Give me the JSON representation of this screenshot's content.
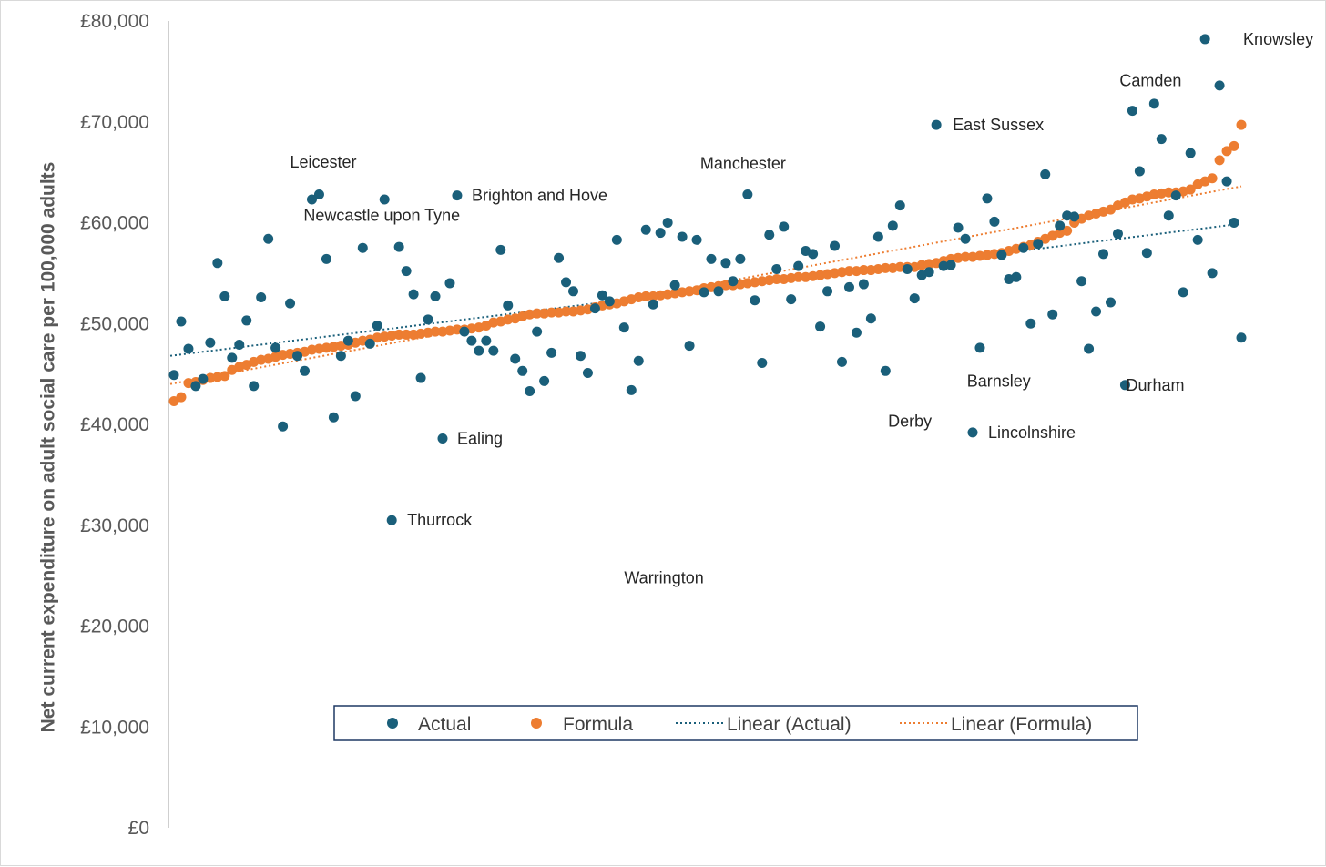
{
  "chart_data": {
    "type": "scatter",
    "ylabel": "Net current expenditure on adult social care per 100,000 adults",
    "xlabel": "",
    "ylim": [
      0,
      80000
    ],
    "y_ticks": [
      "£0",
      "£10,000",
      "£20,000",
      "£30,000",
      "£40,000",
      "£50,000",
      "£60,000",
      "£70,000",
      "£80,000"
    ],
    "legend_position": "bottom-center",
    "colors": {
      "actual": "#1a5f7a",
      "formula": "#ed7d31",
      "axis": "#bfbfbf",
      "legend_border": "#1f3864"
    },
    "legend": {
      "actual": "Actual",
      "formula": "Formula",
      "linear_actual": "Linear (Actual)",
      "linear_formula": "Linear (Formula)"
    },
    "trendlines": {
      "actual": {
        "start": 46800,
        "end": 59900
      },
      "formula": {
        "start": 44000,
        "end": 63600
      }
    },
    "annotations": [
      {
        "label": "Knowsley",
        "x": 145,
        "y": 78200
      },
      {
        "label": "Camden",
        "x": 132,
        "y": 71100
      },
      {
        "label": "East Sussex",
        "x": 105,
        "y": 69700
      },
      {
        "label": "Leicester",
        "x": 20,
        "y": 62300
      },
      {
        "label": "Manchester",
        "x": 79,
        "y": 62800
      },
      {
        "label": "Brighton and Hove",
        "x": 39,
        "y": 62700
      },
      {
        "label": "Newcastle upon Tyne",
        "x": 21,
        "y": 62800
      },
      {
        "label": "Barnsley",
        "x": 121,
        "y": 44300
      },
      {
        "label": "Durham",
        "x": 129,
        "y": 43900
      },
      {
        "label": "Derby",
        "x": 107,
        "y": 40300
      },
      {
        "label": "Lincolnshire",
        "x": 110,
        "y": 39200
      },
      {
        "label": "Ealing",
        "x": 37,
        "y": 38600
      },
      {
        "label": "Thurrock",
        "x": 30,
        "y": 30500
      },
      {
        "label": "Warrington",
        "x": 60,
        "y": 24800
      }
    ],
    "series": [
      {
        "name": "Actual",
        "x": [
          0,
          1,
          2,
          3,
          4,
          5,
          6,
          7,
          8,
          9,
          10,
          11,
          12,
          13,
          14,
          15,
          16,
          17,
          18,
          19,
          20,
          21,
          22,
          23,
          24,
          25,
          26,
          27,
          28,
          29,
          30,
          31,
          32,
          33,
          34,
          35,
          36,
          37,
          38,
          39,
          40,
          41,
          42,
          43,
          44,
          45,
          46,
          47,
          48,
          49,
          50,
          51,
          52,
          53,
          54,
          55,
          56,
          57,
          58,
          59,
          60,
          61,
          62,
          63,
          64,
          65,
          66,
          67,
          68,
          69,
          70,
          71,
          72,
          73,
          74,
          75,
          76,
          77,
          78,
          79,
          80,
          81,
          82,
          83,
          84,
          85,
          86,
          87,
          88,
          89,
          90,
          91,
          92,
          93,
          94,
          95,
          96,
          97,
          98,
          99,
          100,
          101,
          102,
          103,
          104,
          105,
          106,
          107,
          108,
          109,
          110,
          111,
          112,
          113,
          114,
          115,
          116,
          117,
          118,
          119,
          120,
          121,
          122,
          123,
          124,
          125,
          126,
          127,
          128,
          129,
          130,
          131,
          132,
          133,
          134,
          135,
          136,
          137,
          138,
          139,
          140,
          141,
          142,
          143,
          144,
          145,
          146,
          147
        ],
        "values": [
          44900,
          50200,
          47500,
          43800,
          44500,
          48100,
          56000,
          52700,
          46600,
          47900,
          50300,
          43800,
          52600,
          58400,
          47600,
          39800,
          52000,
          46800,
          45300,
          62300,
          62800,
          56400,
          40700,
          46800,
          48300,
          42800,
          57500,
          48000,
          49800,
          62300,
          30500,
          57600,
          55200,
          52900,
          44600,
          50400,
          52700,
          38600,
          54000,
          62700,
          49200,
          48300,
          47300,
          48300,
          47300,
          57300,
          51800,
          46500,
          45300,
          43300,
          49200,
          44300,
          47100,
          56500,
          54100,
          53200,
          46800,
          45100,
          51500,
          52800,
          52200,
          58300,
          49600,
          43400,
          46300,
          59300,
          51900,
          59000,
          60000,
          53800,
          58600,
          47800,
          58300,
          53100,
          56400,
          53200,
          56000,
          54200,
          56400,
          62800,
          52300,
          46100,
          58800,
          55400,
          59600,
          52400,
          55700,
          57200,
          56900,
          49700,
          53200,
          57700,
          46200,
          53600,
          49100,
          53900,
          50500,
          58600,
          45300,
          59700,
          61700,
          55400,
          52500,
          54800,
          55100,
          69700,
          55700,
          55800,
          59500,
          58400,
          39200,
          47600,
          62400,
          60100,
          56800,
          54400,
          54600,
          57500,
          50000,
          57900,
          64800,
          50900,
          59700,
          60700,
          60600,
          54200,
          47500,
          51200,
          56900,
          52100,
          58900,
          43900,
          71100,
          65100,
          57000,
          71800,
          68300,
          60700,
          62700,
          53100,
          66900,
          58300,
          78200,
          55000,
          73600,
          64100,
          60000,
          48600
        ]
      },
      {
        "name": "Formula",
        "x": [
          0,
          1,
          2,
          3,
          4,
          5,
          6,
          7,
          8,
          9,
          10,
          11,
          12,
          13,
          14,
          15,
          16,
          17,
          18,
          19,
          20,
          21,
          22,
          23,
          24,
          25,
          26,
          27,
          28,
          29,
          30,
          31,
          32,
          33,
          34,
          35,
          36,
          37,
          38,
          39,
          40,
          41,
          42,
          43,
          44,
          45,
          46,
          47,
          48,
          49,
          50,
          51,
          52,
          53,
          54,
          55,
          56,
          57,
          58,
          59,
          60,
          61,
          62,
          63,
          64,
          65,
          66,
          67,
          68,
          69,
          70,
          71,
          72,
          73,
          74,
          75,
          76,
          77,
          78,
          79,
          80,
          81,
          82,
          83,
          84,
          85,
          86,
          87,
          88,
          89,
          90,
          91,
          92,
          93,
          94,
          95,
          96,
          97,
          98,
          99,
          100,
          101,
          102,
          103,
          104,
          105,
          106,
          107,
          108,
          109,
          110,
          111,
          112,
          113,
          114,
          115,
          116,
          117,
          118,
          119,
          120,
          121,
          122,
          123,
          124,
          125,
          126,
          127,
          128,
          129,
          130,
          131,
          132,
          133,
          134,
          135,
          136,
          137,
          138,
          139,
          140,
          141,
          142,
          143,
          144,
          145,
          146,
          147
        ],
        "values": [
          42300,
          42700,
          44100,
          44200,
          44400,
          44600,
          44700,
          44800,
          45400,
          45700,
          45900,
          46200,
          46400,
          46500,
          46700,
          46900,
          47000,
          47100,
          47200,
          47400,
          47500,
          47600,
          47700,
          47800,
          47900,
          48100,
          48300,
          48400,
          48600,
          48700,
          48800,
          48900,
          48900,
          48900,
          49000,
          49100,
          49200,
          49200,
          49300,
          49400,
          49400,
          49500,
          49600,
          49800,
          50100,
          50200,
          50400,
          50500,
          50700,
          50900,
          51000,
          51000,
          51100,
          51100,
          51200,
          51200,
          51300,
          51400,
          51600,
          51800,
          51900,
          52000,
          52200,
          52400,
          52600,
          52700,
          52700,
          52800,
          52900,
          53000,
          53100,
          53200,
          53300,
          53500,
          53600,
          53700,
          53800,
          53800,
          53900,
          54000,
          54100,
          54200,
          54300,
          54400,
          54400,
          54500,
          54600,
          54600,
          54700,
          54800,
          54900,
          55000,
          55100,
          55200,
          55200,
          55300,
          55300,
          55400,
          55500,
          55500,
          55600,
          55600,
          55600,
          55800,
          55900,
          56000,
          56200,
          56400,
          56500,
          56600,
          56600,
          56700,
          56800,
          56900,
          57000,
          57200,
          57400,
          57600,
          57800,
          58100,
          58400,
          58700,
          59000,
          59200,
          60000,
          60400,
          60700,
          60900,
          61100,
          61300,
          61700,
          62000,
          62300,
          62400,
          62600,
          62800,
          62900,
          63000,
          63000,
          63100,
          63300,
          63800,
          64100,
          64400,
          66200,
          67100,
          67600,
          69700
        ]
      }
    ]
  }
}
